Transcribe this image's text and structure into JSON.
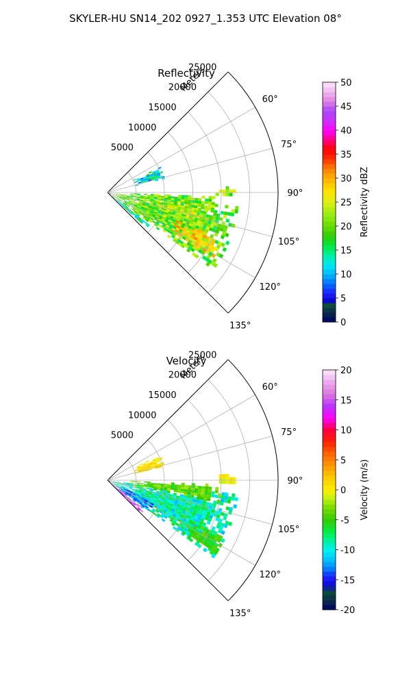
{
  "suptitle": "SKYLER-HU  SN14_202  0927_1.353 UTC Elevation 08°",
  "chart_data": [
    {
      "type": "heatmap",
      "projection": "polar-sector",
      "title": "Reflectivity",
      "radial_label": "Meters",
      "range_ticks": [
        "5000",
        "10000",
        "15000",
        "20000",
        "25000"
      ],
      "range_tick_values": [
        5000,
        10000,
        15000,
        20000,
        25000
      ],
      "rmax": 30000,
      "azimuth_ticks": [
        "60°",
        "75°",
        "90°",
        "105°",
        "120°",
        "135°"
      ],
      "azimuth_tick_values": [
        60,
        75,
        90,
        105,
        120,
        135
      ],
      "azimuth_range": [
        45,
        135
      ],
      "grid": true,
      "colorbar": {
        "label": "Reflectivity dBZ",
        "min": 0,
        "max": 50,
        "ticks": [
          "0",
          "5",
          "10",
          "15",
          "20",
          "25",
          "30",
          "35",
          "40",
          "45",
          "50"
        ],
        "tick_values": [
          0,
          5,
          10,
          15,
          20,
          25,
          30,
          35,
          40,
          45,
          50
        ],
        "stops": [
          {
            "v": 0,
            "c": "#000066"
          },
          {
            "v": 2,
            "c": "#0b2a4a"
          },
          {
            "v": 3.5,
            "c": "#0d4d3a"
          },
          {
            "v": 4.5,
            "c": "#0a0acc"
          },
          {
            "v": 6,
            "c": "#1f1fff"
          },
          {
            "v": 8,
            "c": "#0070ff"
          },
          {
            "v": 10,
            "c": "#00b8ff"
          },
          {
            "v": 12,
            "c": "#00e8f0"
          },
          {
            "v": 14,
            "c": "#00f0a0"
          },
          {
            "v": 16,
            "c": "#00e840"
          },
          {
            "v": 18,
            "c": "#33cc00"
          },
          {
            "v": 20,
            "c": "#66dd00"
          },
          {
            "v": 22.5,
            "c": "#99ee11"
          },
          {
            "v": 25,
            "c": "#ddf011"
          },
          {
            "v": 27.5,
            "c": "#ffe000"
          },
          {
            "v": 30,
            "c": "#ffb000"
          },
          {
            "v": 32,
            "c": "#ff8000"
          },
          {
            "v": 34,
            "c": "#ff3000"
          },
          {
            "v": 36,
            "c": "#ff0000"
          },
          {
            "v": 38,
            "c": "#ff0080"
          },
          {
            "v": 40,
            "c": "#ff00ff"
          },
          {
            "v": 42,
            "c": "#cc33ff"
          },
          {
            "v": 44,
            "c": "#aa44ff"
          },
          {
            "v": 46,
            "c": "#e080e0"
          },
          {
            "v": 48,
            "c": "#f0b8f0"
          },
          {
            "v": 50,
            "c": "#fde8fd"
          }
        ]
      },
      "echo_regions": [
        {
          "az": [
            96,
            126
          ],
          "r": [
            1000,
            23000
          ],
          "v_mean": 20,
          "v_spread": 5
        },
        {
          "az": [
            98,
            106
          ],
          "r": [
            9000,
            18000
          ],
          "v_mean": 24,
          "v_spread": 4
        },
        {
          "az": [
            112,
            120
          ],
          "r": [
            13000,
            22000
          ],
          "v_mean": 27,
          "v_spread": 5
        },
        {
          "az": [
            92,
            99
          ],
          "r": [
            4000,
            19000
          ],
          "v_mean": 20,
          "v_spread": 5
        },
        {
          "az": [
            64,
            76
          ],
          "r": [
            5000,
            10000
          ],
          "v_mean": 12,
          "v_spread": 6
        },
        {
          "az": [
            87,
            91
          ],
          "r": [
            19000,
            22500
          ],
          "v_mean": 22,
          "v_spread": 5
        },
        {
          "az": [
            126,
            132
          ],
          "r": [
            1000,
            9000
          ],
          "v_mean": 14,
          "v_spread": 4
        }
      ]
    },
    {
      "type": "heatmap",
      "projection": "polar-sector",
      "title": "Velocity",
      "radial_label": "Meters",
      "range_ticks": [
        "5000",
        "10000",
        "15000",
        "20000",
        "25000"
      ],
      "range_tick_values": [
        5000,
        10000,
        15000,
        20000,
        25000
      ],
      "rmax": 30000,
      "azimuth_ticks": [
        "60°",
        "75°",
        "90°",
        "105°",
        "120°",
        "135°"
      ],
      "azimuth_tick_values": [
        60,
        75,
        90,
        105,
        120,
        135
      ],
      "azimuth_range": [
        45,
        135
      ],
      "grid": true,
      "colorbar": {
        "label": "Velocity (m/s)",
        "min": -20,
        "max": 20,
        "ticks": [
          "-20",
          "-15",
          "-10",
          "-5",
          "0",
          "5",
          "10",
          "15",
          "20"
        ],
        "tick_values": [
          -20,
          -15,
          -10,
          -5,
          0,
          5,
          10,
          15,
          20
        ],
        "stops": [
          {
            "v": -20,
            "c": "#000066"
          },
          {
            "v": -18.5,
            "c": "#0b2a4a"
          },
          {
            "v": -17,
            "c": "#0d4d3a"
          },
          {
            "v": -16,
            "c": "#0a0acc"
          },
          {
            "v": -14.5,
            "c": "#1f1fff"
          },
          {
            "v": -13,
            "c": "#0088ff"
          },
          {
            "v": -11.5,
            "c": "#00c8ff"
          },
          {
            "v": -10,
            "c": "#00f0f0"
          },
          {
            "v": -8.5,
            "c": "#00f0a0"
          },
          {
            "v": -7,
            "c": "#00ee44"
          },
          {
            "v": -5,
            "c": "#33cc00"
          },
          {
            "v": -3,
            "c": "#77dd00"
          },
          {
            "v": -1.5,
            "c": "#bbf011"
          },
          {
            "v": 0,
            "c": "#ffee00"
          },
          {
            "v": 2,
            "c": "#ffcc00"
          },
          {
            "v": 4,
            "c": "#ff9900"
          },
          {
            "v": 6,
            "c": "#ff6600"
          },
          {
            "v": 8,
            "c": "#ff2200"
          },
          {
            "v": 10,
            "c": "#ff0040"
          },
          {
            "v": 12,
            "c": "#ff00ff"
          },
          {
            "v": 14,
            "c": "#bb33ff"
          },
          {
            "v": 16,
            "c": "#dd77dd"
          },
          {
            "v": 18,
            "c": "#eeaaee"
          },
          {
            "v": 20,
            "c": "#fbe8fb"
          }
        ]
      },
      "echo_regions": [
        {
          "az": [
            96,
            126
          ],
          "r": [
            1000,
            23000
          ],
          "v_mean": -9,
          "v_spread": 3
        },
        {
          "az": [
            92,
            100
          ],
          "r": [
            4000,
            20000
          ],
          "v_mean": -4,
          "v_spread": 2
        },
        {
          "az": [
            114,
            128
          ],
          "r": [
            2000,
            9000
          ],
          "v_mean": -13,
          "v_spread": 2
        },
        {
          "az": [
            128,
            134
          ],
          "r": [
            600,
            8000
          ],
          "v_mean": 15,
          "v_spread": 2
        },
        {
          "az": [
            64,
            76
          ],
          "r": [
            5000,
            10000
          ],
          "v_mean": 1,
          "v_spread": 2
        },
        {
          "az": [
            87,
            91
          ],
          "r": [
            19000,
            22500
          ],
          "v_mean": 0,
          "v_spread": 1.5
        },
        {
          "az": [
            116,
            124
          ],
          "r": [
            16000,
            23000
          ],
          "v_mean": -5,
          "v_spread": 1.5
        }
      ]
    }
  ]
}
